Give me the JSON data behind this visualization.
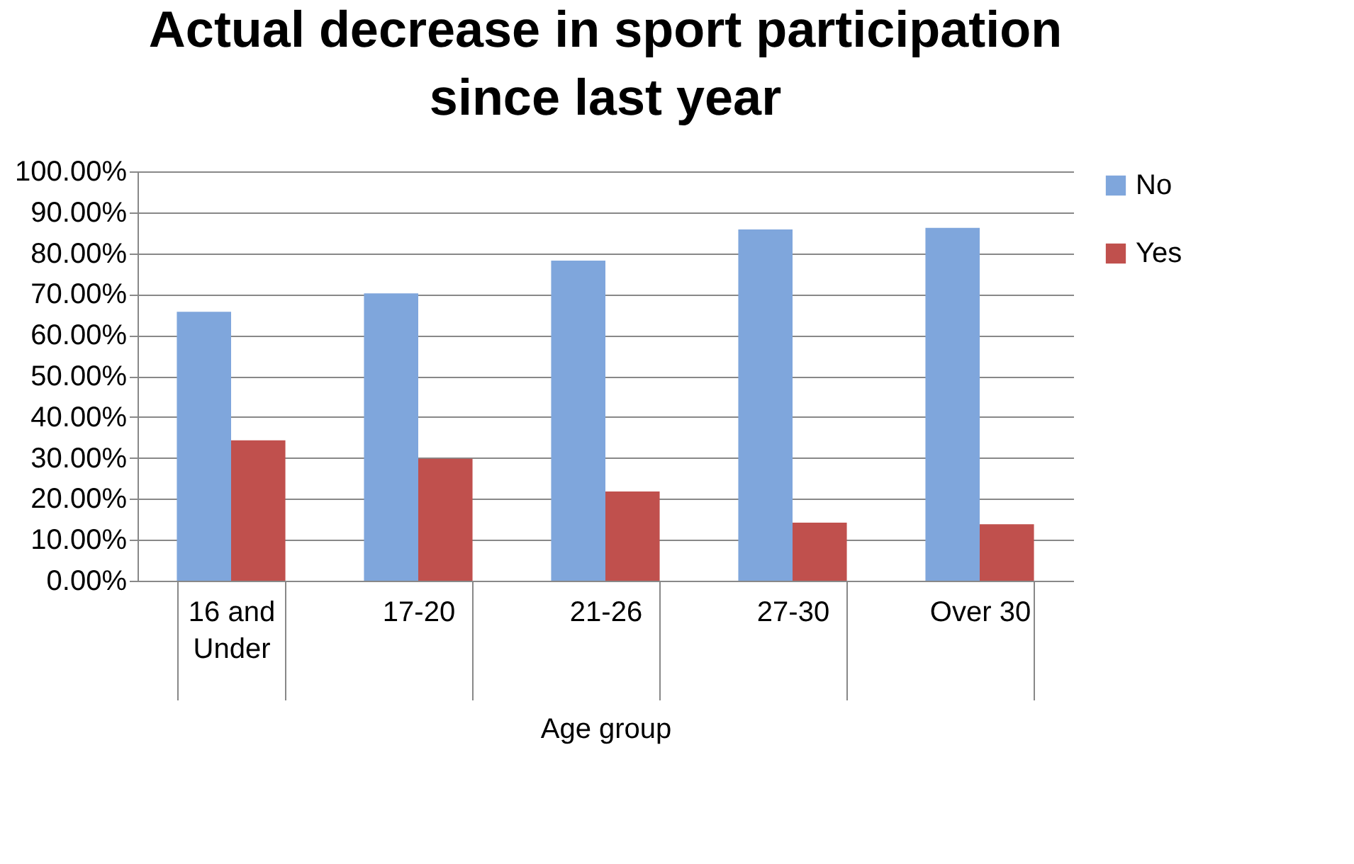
{
  "chart_data": {
    "type": "bar",
    "title": "Actual decrease in sport participation since last year",
    "xlabel": "Age group",
    "categories": [
      "16 and Under",
      "17-20",
      "21-26",
      "27-30",
      "Over 30"
    ],
    "series": [
      {
        "name": "No",
        "color": "#7fa6dc",
        "values": [
          65.7,
          70.2,
          78.2,
          85.8,
          86.2
        ]
      },
      {
        "name": "Yes",
        "color": "#c0504d",
        "values": [
          34.3,
          29.8,
          21.8,
          14.2,
          13.8
        ]
      }
    ],
    "ylim": [
      0,
      100
    ],
    "yticks": [
      {
        "value": 0,
        "label": "0.00%"
      },
      {
        "value": 10,
        "label": "10.00%"
      },
      {
        "value": 20,
        "label": "20.00%"
      },
      {
        "value": 30,
        "label": "30.00%"
      },
      {
        "value": 40,
        "label": "40.00%"
      },
      {
        "value": 50,
        "label": "50.00%"
      },
      {
        "value": 60,
        "label": "60.00%"
      },
      {
        "value": 70,
        "label": "70.00%"
      },
      {
        "value": 80,
        "label": "80.00%"
      },
      {
        "value": 90,
        "label": "90.00%"
      },
      {
        "value": 100,
        "label": "100.00%"
      }
    ],
    "grid": "y",
    "legend": "right"
  }
}
